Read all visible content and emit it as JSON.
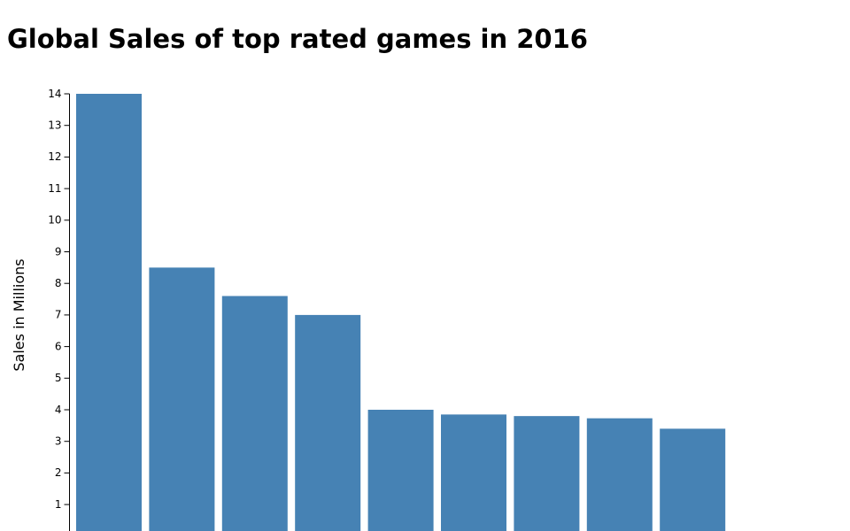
{
  "title": "Global Sales of top rated games in 2016",
  "colors": {
    "bar": "#4682b4",
    "axis": "#000000"
  },
  "chart_data": {
    "type": "bar",
    "title": "Global Sales of top rated games in 2016",
    "xlabel": "",
    "ylabel": "Sales in Millions",
    "ylim": [
      0,
      14
    ],
    "yticks": [
      1,
      2,
      3,
      4,
      5,
      6,
      7,
      8,
      9,
      10,
      11,
      12,
      13,
      14
    ],
    "grid": false,
    "values": [
      14.0,
      8.5,
      7.6,
      7.0,
      4.0,
      3.85,
      3.8,
      3.73,
      3.4
    ]
  }
}
